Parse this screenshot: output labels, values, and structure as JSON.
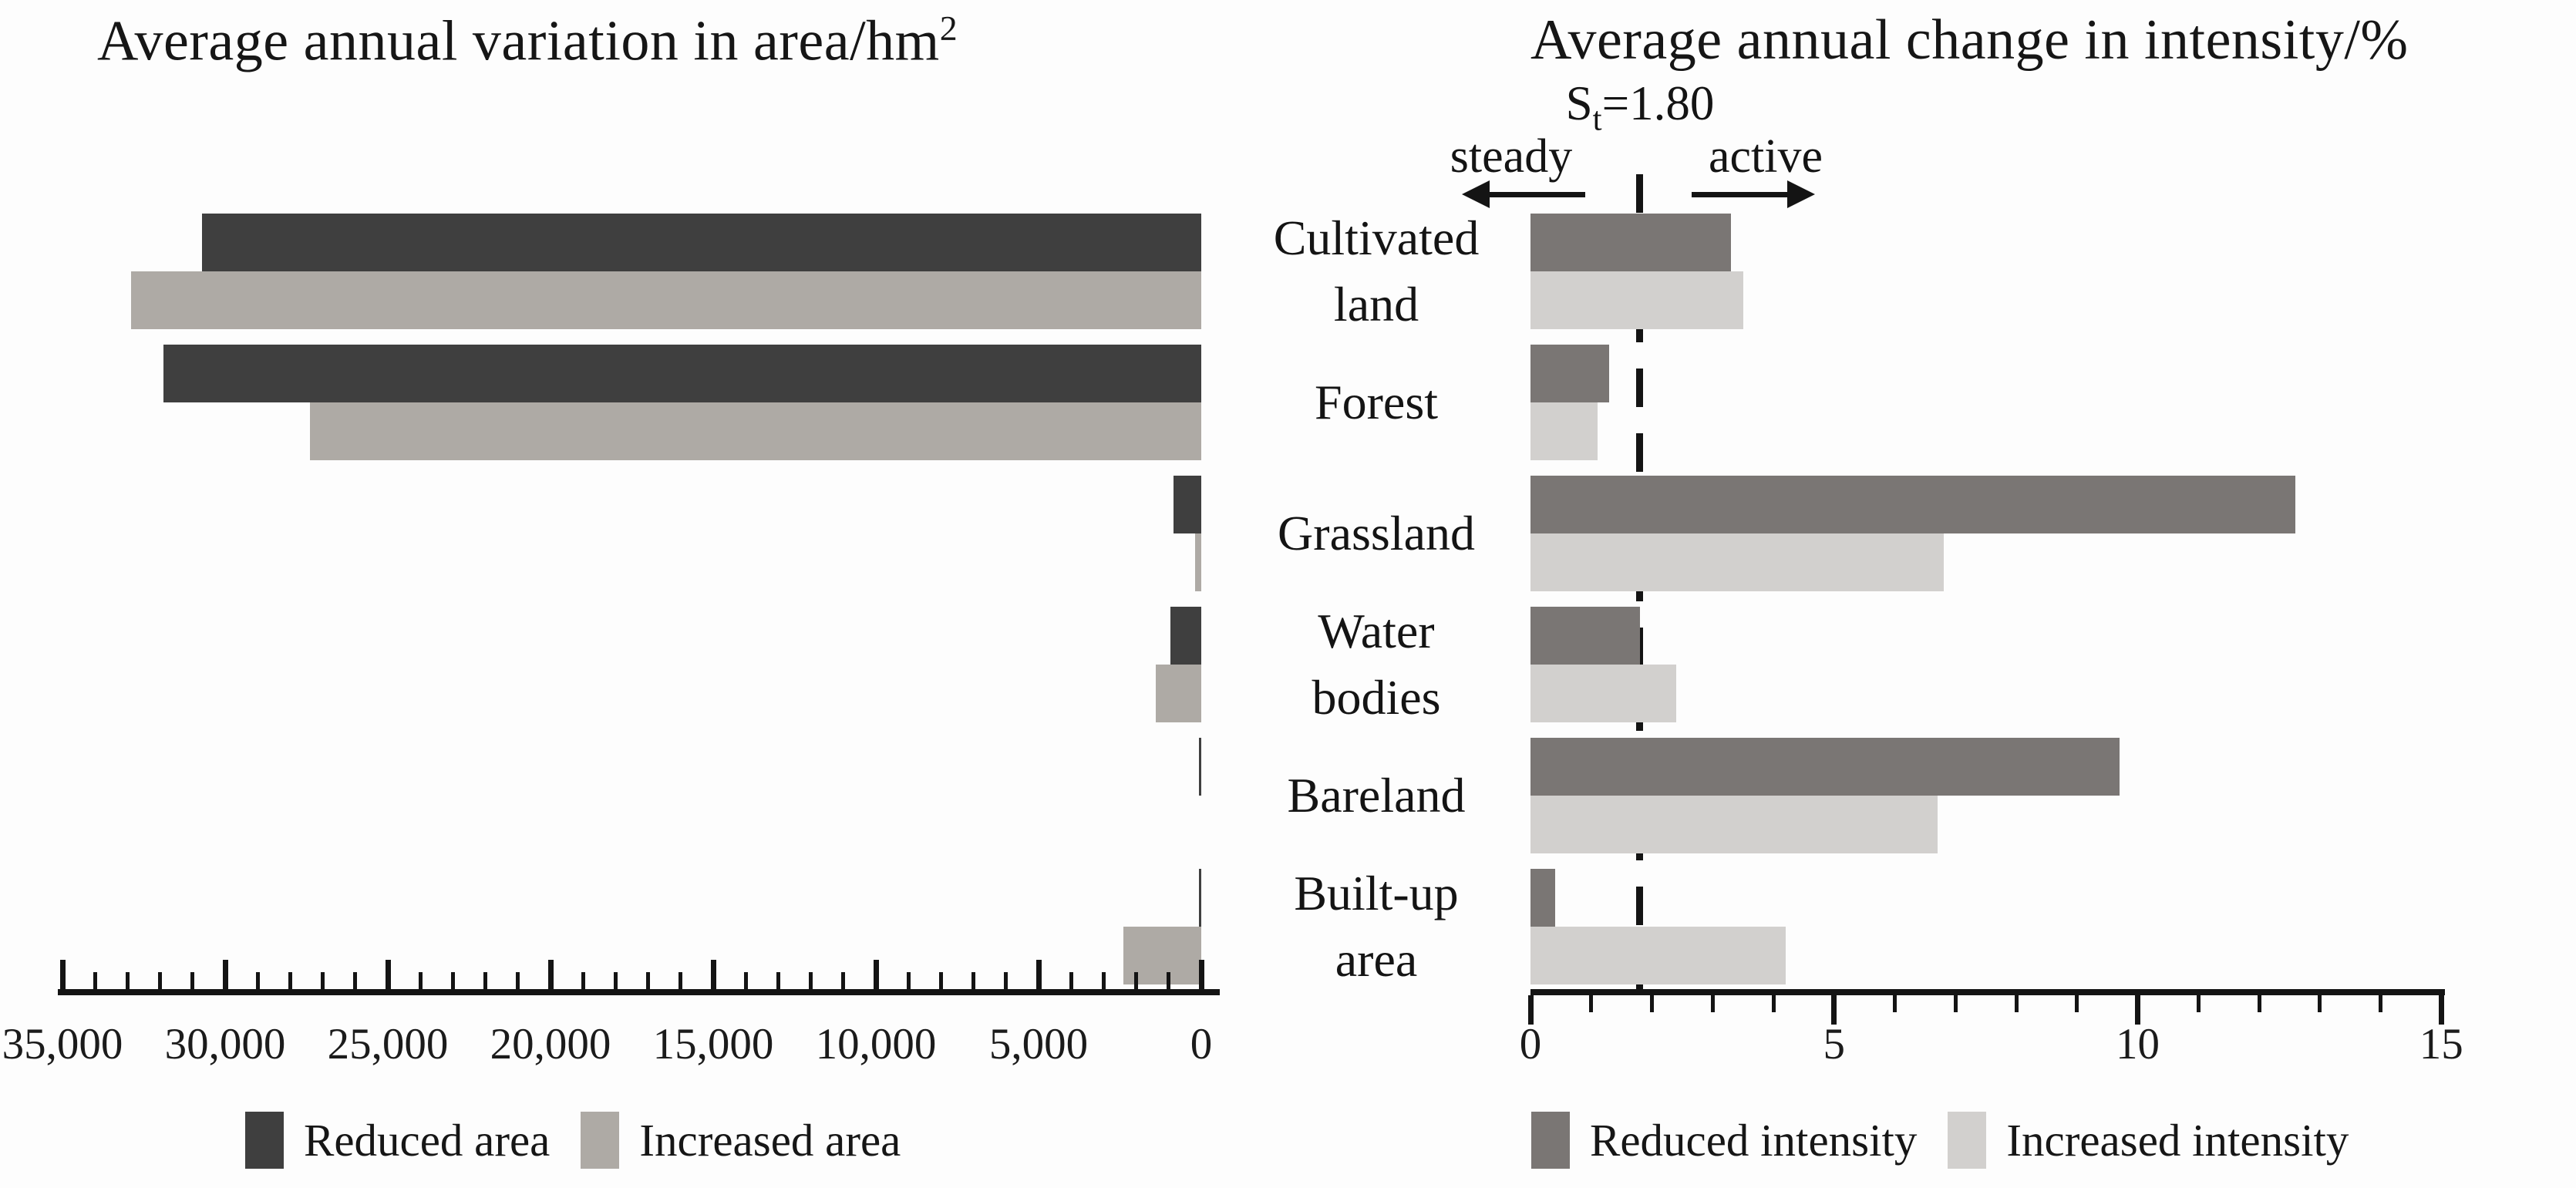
{
  "figure": {
    "background": "#fdfdfd"
  },
  "chart_data": [
    {
      "type": "bar",
      "orientation": "horizontal-right-to-left",
      "title": "Average annual variation in area/hm²",
      "title_main": "Average annual variation in area/hm",
      "title_sup": "2",
      "categories": [
        "Cultivated land",
        "Forest",
        "Grassland",
        "Water bodies",
        "Bareland",
        "Built-up area"
      ],
      "category_lines": [
        [
          "Cultivated",
          "land"
        ],
        [
          "Forest"
        ],
        [
          "Grassland"
        ],
        [
          "Water",
          "bodies"
        ],
        [
          "Bareland"
        ],
        [
          "Built-up",
          "area"
        ]
      ],
      "series": [
        {
          "name": "Reduced area",
          "color": "#3f3f3f",
          "values": [
            30700,
            31900,
            850,
            950,
            70,
            70
          ]
        },
        {
          "name": "Increased area",
          "color": "#aeaaa5",
          "values": [
            32900,
            27400,
            200,
            1400,
            0,
            2400
          ]
        }
      ],
      "xlim": [
        0,
        35000
      ],
      "tick_values": [
        35000,
        30000,
        25000,
        20000,
        15000,
        10000,
        5000,
        0
      ],
      "tick_labels": [
        "35,000",
        "30,000",
        "25,000",
        "20,000",
        "15,000",
        "10,000",
        "5,000",
        "0"
      ],
      "major_tick_step": 5000,
      "minor_tick_step": 1000,
      "grid": false,
      "legend_position": "bottom"
    },
    {
      "type": "bar",
      "orientation": "horizontal-left-to-right",
      "title": "Average annual change in intensity/%",
      "categories": [
        "Cultivated land",
        "Forest",
        "Grassland",
        "Water bodies",
        "Bareland",
        "Built-up area"
      ],
      "series": [
        {
          "name": "Reduced intensity",
          "color": "#7a7674",
          "values": [
            3.3,
            1.3,
            12.6,
            1.8,
            9.7,
            0.4
          ]
        },
        {
          "name": "Increased intensity",
          "color": "#d2d0ce",
          "values": [
            3.5,
            1.1,
            6.8,
            2.4,
            6.7,
            4.2
          ]
        }
      ],
      "xlim": [
        0,
        15
      ],
      "tick_values": [
        0,
        5,
        10,
        15
      ],
      "tick_labels": [
        "0",
        "5",
        "10",
        "15"
      ],
      "major_tick_step": 5,
      "minor_tick_step": 1,
      "grid": false,
      "legend_position": "bottom",
      "annotation": {
        "pre": "S",
        "sub": "t",
        "post": "=1.80",
        "threshold_value": 1.8,
        "left_label": "steady",
        "right_label": "active"
      }
    }
  ]
}
